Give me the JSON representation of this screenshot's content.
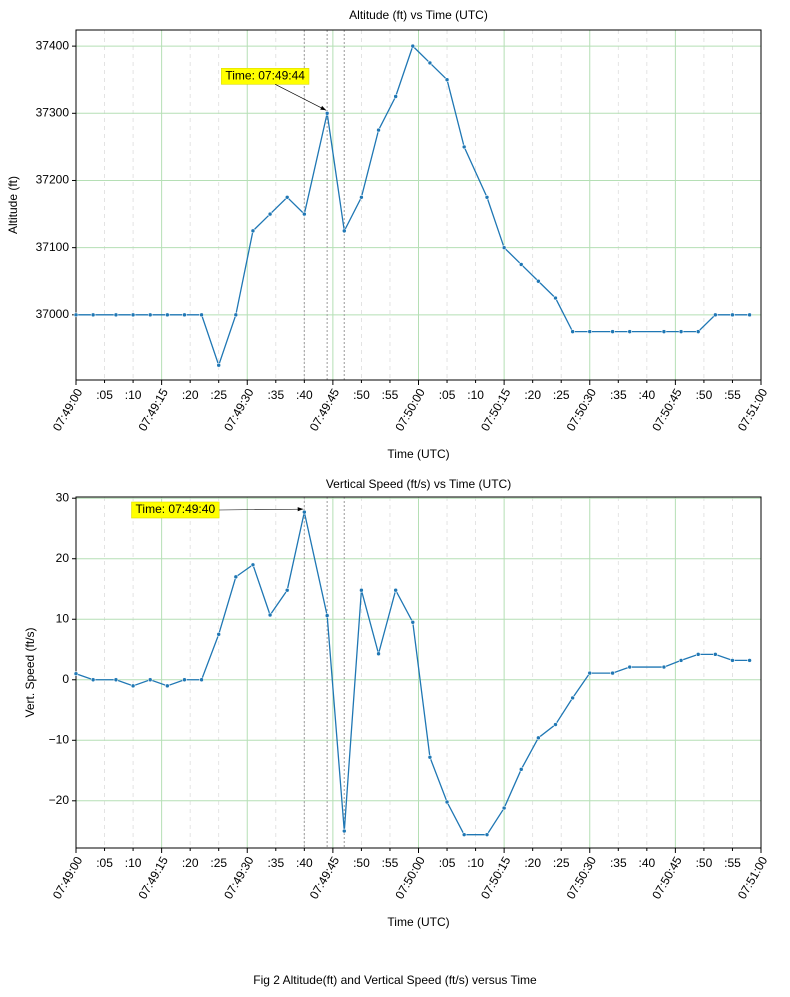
{
  "chart_data": [
    {
      "type": "line",
      "title": "Altitude (ft) vs Time (UTC)",
      "x_label": "Time (UTC)",
      "y_label": "Altitude (ft)",
      "color": "#1f77b4",
      "x": [
        "07:49:00",
        "07:49:03",
        "07:49:07",
        "07:49:10",
        "07:49:13",
        "07:49:16",
        "07:49:19",
        "07:49:22",
        "07:49:25",
        "07:49:28",
        "07:49:31",
        "07:49:34",
        "07:49:37",
        "07:49:40",
        "07:49:44",
        "07:49:47",
        "07:49:50",
        "07:49:53",
        "07:49:56",
        "07:49:59",
        "07:50:02",
        "07:50:05",
        "07:50:08",
        "07:50:12",
        "07:50:15",
        "07:50:18",
        "07:50:21",
        "07:50:24",
        "07:50:27",
        "07:50:30",
        "07:50:34",
        "07:50:37",
        "07:50:43",
        "07:50:46",
        "07:50:49",
        "07:50:52",
        "07:50:55",
        "07:50:58"
      ],
      "values": [
        37000,
        37000,
        37000,
        37000,
        37000,
        37000,
        37000,
        37000,
        36925,
        37000,
        37125,
        37150,
        37175,
        37150,
        37300,
        37125,
        37175,
        37275,
        37325,
        37400,
        37375,
        37350,
        37250,
        37175,
        37100,
        37075,
        37050,
        37025,
        36975,
        36975,
        36975,
        36975,
        36975,
        36975,
        36975,
        37000,
        37000,
        37000
      ],
      "xlim": [
        "07:49:00",
        "07:51:00"
      ],
      "ylim": [
        36903,
        37424
      ],
      "yticks": [
        37000,
        37100,
        37200,
        37300,
        37400
      ],
      "highlight_x": [
        "07:49:40",
        "07:49:44",
        "07:49:47"
      ],
      "annotation": {
        "text": "Time: 07:49:44",
        "x": "07:49:44"
      }
    },
    {
      "type": "line",
      "title": "Vertical Speed (ft/s) vs Time (UTC)",
      "x_label": "Time (UTC)",
      "y_label": "Vert. Speed (ft/s)",
      "color": "#1f77b4",
      "x": [
        "07:49:00",
        "07:49:03",
        "07:49:07",
        "07:49:10",
        "07:49:13",
        "07:49:16",
        "07:49:19",
        "07:49:22",
        "07:49:25",
        "07:49:28",
        "07:49:31",
        "07:49:34",
        "07:49:37",
        "07:49:40",
        "07:49:44",
        "07:49:47",
        "07:49:50",
        "07:49:53",
        "07:49:56",
        "07:49:59",
        "07:50:02",
        "07:50:05",
        "07:50:08",
        "07:50:12",
        "07:50:15",
        "07:50:18",
        "07:50:21",
        "07:50:24",
        "07:50:27",
        "07:50:30",
        "07:50:34",
        "07:50:37",
        "07:50:43",
        "07:50:46",
        "07:50:49",
        "07:50:52",
        "07:50:55",
        "07:50:58"
      ],
      "values": [
        1,
        0,
        0,
        -1,
        0,
        -1,
        0,
        0,
        7.5,
        17,
        19,
        10.7,
        14.8,
        27.7,
        10.6,
        -25,
        14.8,
        4.3,
        14.8,
        9.5,
        -12.8,
        -20.2,
        -25.6,
        -25.6,
        -21.2,
        -14.8,
        -9.6,
        -7.4,
        -3,
        1.1,
        1.1,
        2.1,
        2.1,
        3.2,
        4.2,
        4.2,
        3.2,
        3.2
      ],
      "xlim": [
        "07:49:00",
        "07:51:00"
      ],
      "ylim": [
        -27.8,
        30.2
      ],
      "yticks": [
        {
          "value": -20,
          "label": "−20"
        },
        {
          "value": -10,
          "label": "−10"
        },
        0,
        10,
        20,
        30
      ],
      "highlight_x": [
        "07:49:40",
        "07:49:44",
        "07:49:47"
      ],
      "annotation": {
        "text": "Time: 07:49:40",
        "x": "07:49:40"
      }
    }
  ],
  "shared_xticks": [
    "07:49:00",
    {
      "value": "07:49:05",
      "label": ":05"
    },
    {
      "value": "07:49:10",
      "label": ":10"
    },
    "07:49:15",
    {
      "value": "07:49:20",
      "label": ":20"
    },
    {
      "value": "07:49:25",
      "label": ":25"
    },
    "07:49:30",
    {
      "value": "07:49:35",
      "label": ":35"
    },
    {
      "value": "07:49:40",
      "label": ":40"
    },
    "07:49:45",
    {
      "value": "07:49:50",
      "label": ":50"
    },
    {
      "value": "07:49:55",
      "label": ":55"
    },
    "07:50:00",
    {
      "value": "07:50:05",
      "label": ":05"
    },
    {
      "value": "07:50:10",
      "label": ":10"
    },
    "07:50:15",
    {
      "value": "07:50:20",
      "label": ":20"
    },
    {
      "value": "07:50:25",
      "label": ":25"
    },
    "07:50:30",
    {
      "value": "07:50:35",
      "label": ":35"
    },
    {
      "value": "07:50:40",
      "label": ":40"
    },
    "07:50:45",
    {
      "value": "07:50:50",
      "label": ":50"
    },
    {
      "value": "07:50:55",
      "label": ":55"
    },
    "07:51:00"
  ],
  "caption": "Fig 2 Altitude(ft) and Vertical Speed (ft/s) versus Time"
}
